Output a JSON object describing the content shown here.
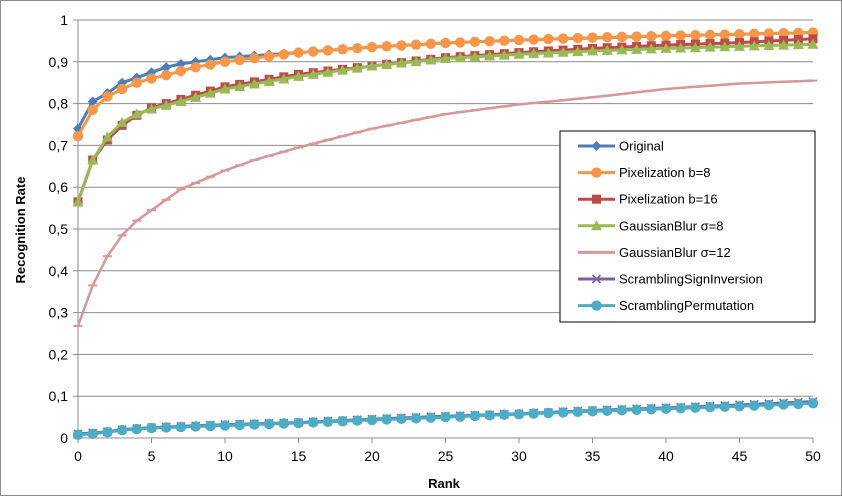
{
  "chart_data": {
    "type": "line",
    "title": "",
    "xlabel": "Rank",
    "ylabel": "Recognition Rate",
    "xlim": [
      0,
      50
    ],
    "ylim": [
      0,
      1
    ],
    "xticks": [
      0,
      5,
      10,
      15,
      20,
      25,
      30,
      35,
      40,
      45,
      50
    ],
    "yticks": [
      0,
      0.1,
      0.2,
      0.3,
      0.4,
      0.5,
      0.6,
      0.7,
      0.8,
      0.9,
      1
    ],
    "xtick_labels": [
      "0",
      "5",
      "10",
      "15",
      "20",
      "25",
      "30",
      "35",
      "40",
      "45",
      "50"
    ],
    "ytick_labels": [
      "0",
      "0,1",
      "0,2",
      "0,3",
      "0,4",
      "0,5",
      "0,6",
      "0,7",
      "0,8",
      "0,9",
      "1"
    ],
    "grid": "horizontal",
    "legend_position": "right",
    "series": [
      {
        "name": "Original",
        "color": "#4a7ebb",
        "marker": "diamond",
        "anchors": [
          [
            0,
            0.74
          ],
          [
            1,
            0.805
          ],
          [
            2,
            0.825
          ],
          [
            3,
            0.85
          ],
          [
            4,
            0.862
          ],
          [
            5,
            0.875
          ],
          [
            6,
            0.887
          ],
          [
            7,
            0.895
          ],
          [
            8,
            0.9
          ],
          [
            10,
            0.91
          ],
          [
            15,
            0.922
          ],
          [
            20,
            0.935
          ],
          [
            25,
            0.945
          ],
          [
            30,
            0.952
          ],
          [
            35,
            0.957
          ],
          [
            40,
            0.962
          ],
          [
            45,
            0.966
          ],
          [
            50,
            0.97
          ]
        ]
      },
      {
        "name": "Pixelization b=8",
        "color": "#f79646",
        "marker": "circle",
        "anchors": [
          [
            0,
            0.722
          ],
          [
            1,
            0.785
          ],
          [
            2,
            0.817
          ],
          [
            3,
            0.835
          ],
          [
            4,
            0.85
          ],
          [
            5,
            0.86
          ],
          [
            6,
            0.868
          ],
          [
            7,
            0.878
          ],
          [
            8,
            0.887
          ],
          [
            10,
            0.9
          ],
          [
            15,
            0.922
          ],
          [
            20,
            0.935
          ],
          [
            25,
            0.945
          ],
          [
            30,
            0.952
          ],
          [
            35,
            0.958
          ],
          [
            40,
            0.962
          ],
          [
            45,
            0.966
          ],
          [
            50,
            0.97
          ]
        ]
      },
      {
        "name": "Pixelization b=16",
        "color": "#be4b48",
        "marker": "square",
        "anchors": [
          [
            0,
            0.565
          ],
          [
            1,
            0.665
          ],
          [
            2,
            0.713
          ],
          [
            3,
            0.748
          ],
          [
            4,
            0.772
          ],
          [
            5,
            0.79
          ],
          [
            7,
            0.81
          ],
          [
            10,
            0.84
          ],
          [
            15,
            0.87
          ],
          [
            20,
            0.89
          ],
          [
            25,
            0.91
          ],
          [
            30,
            0.922
          ],
          [
            35,
            0.932
          ],
          [
            40,
            0.94
          ],
          [
            45,
            0.946
          ],
          [
            50,
            0.955
          ]
        ]
      },
      {
        "name": "GaussianBlur σ=8",
        "color": "#98b954",
        "marker": "triangle",
        "anchors": [
          [
            0,
            0.565
          ],
          [
            1,
            0.665
          ],
          [
            2,
            0.72
          ],
          [
            3,
            0.755
          ],
          [
            4,
            0.775
          ],
          [
            5,
            0.787
          ],
          [
            7,
            0.805
          ],
          [
            10,
            0.835
          ],
          [
            15,
            0.865
          ],
          [
            20,
            0.89
          ],
          [
            25,
            0.908
          ],
          [
            30,
            0.918
          ],
          [
            35,
            0.926
          ],
          [
            40,
            0.932
          ],
          [
            45,
            0.937
          ],
          [
            50,
            0.942
          ]
        ]
      },
      {
        "name": "GaussianBlur σ=12",
        "color": "#d99694",
        "marker": "dash",
        "anchors": [
          [
            0,
            0.268
          ],
          [
            1,
            0.365
          ],
          [
            2,
            0.435
          ],
          [
            3,
            0.485
          ],
          [
            4,
            0.52
          ],
          [
            5,
            0.545
          ],
          [
            6,
            0.57
          ],
          [
            7,
            0.595
          ],
          [
            8,
            0.61
          ],
          [
            10,
            0.64
          ],
          [
            12,
            0.665
          ],
          [
            15,
            0.695
          ],
          [
            20,
            0.74
          ],
          [
            25,
            0.775
          ],
          [
            30,
            0.798
          ],
          [
            35,
            0.815
          ],
          [
            40,
            0.835
          ],
          [
            45,
            0.848
          ],
          [
            50,
            0.855
          ]
        ]
      },
      {
        "name": "ScramblingSignInversion",
        "color": "#7d60a0",
        "marker": "x",
        "anchors": [
          [
            0,
            0.01
          ],
          [
            1,
            0.012
          ],
          [
            2,
            0.015
          ],
          [
            3,
            0.02
          ],
          [
            5,
            0.025
          ],
          [
            10,
            0.032
          ],
          [
            15,
            0.037
          ],
          [
            20,
            0.045
          ],
          [
            25,
            0.052
          ],
          [
            30,
            0.058
          ],
          [
            35,
            0.066
          ],
          [
            40,
            0.072
          ],
          [
            45,
            0.079
          ],
          [
            50,
            0.087
          ]
        ]
      },
      {
        "name": "ScramblingPermutation",
        "color": "#4bacc6",
        "marker": "circle",
        "anchors": [
          [
            0,
            0.008
          ],
          [
            1,
            0.01
          ],
          [
            2,
            0.014
          ],
          [
            3,
            0.019
          ],
          [
            5,
            0.024
          ],
          [
            10,
            0.03
          ],
          [
            15,
            0.036
          ],
          [
            20,
            0.043
          ],
          [
            25,
            0.05
          ],
          [
            30,
            0.057
          ],
          [
            35,
            0.064
          ],
          [
            40,
            0.07
          ],
          [
            45,
            0.076
          ],
          [
            50,
            0.083
          ]
        ]
      }
    ]
  }
}
